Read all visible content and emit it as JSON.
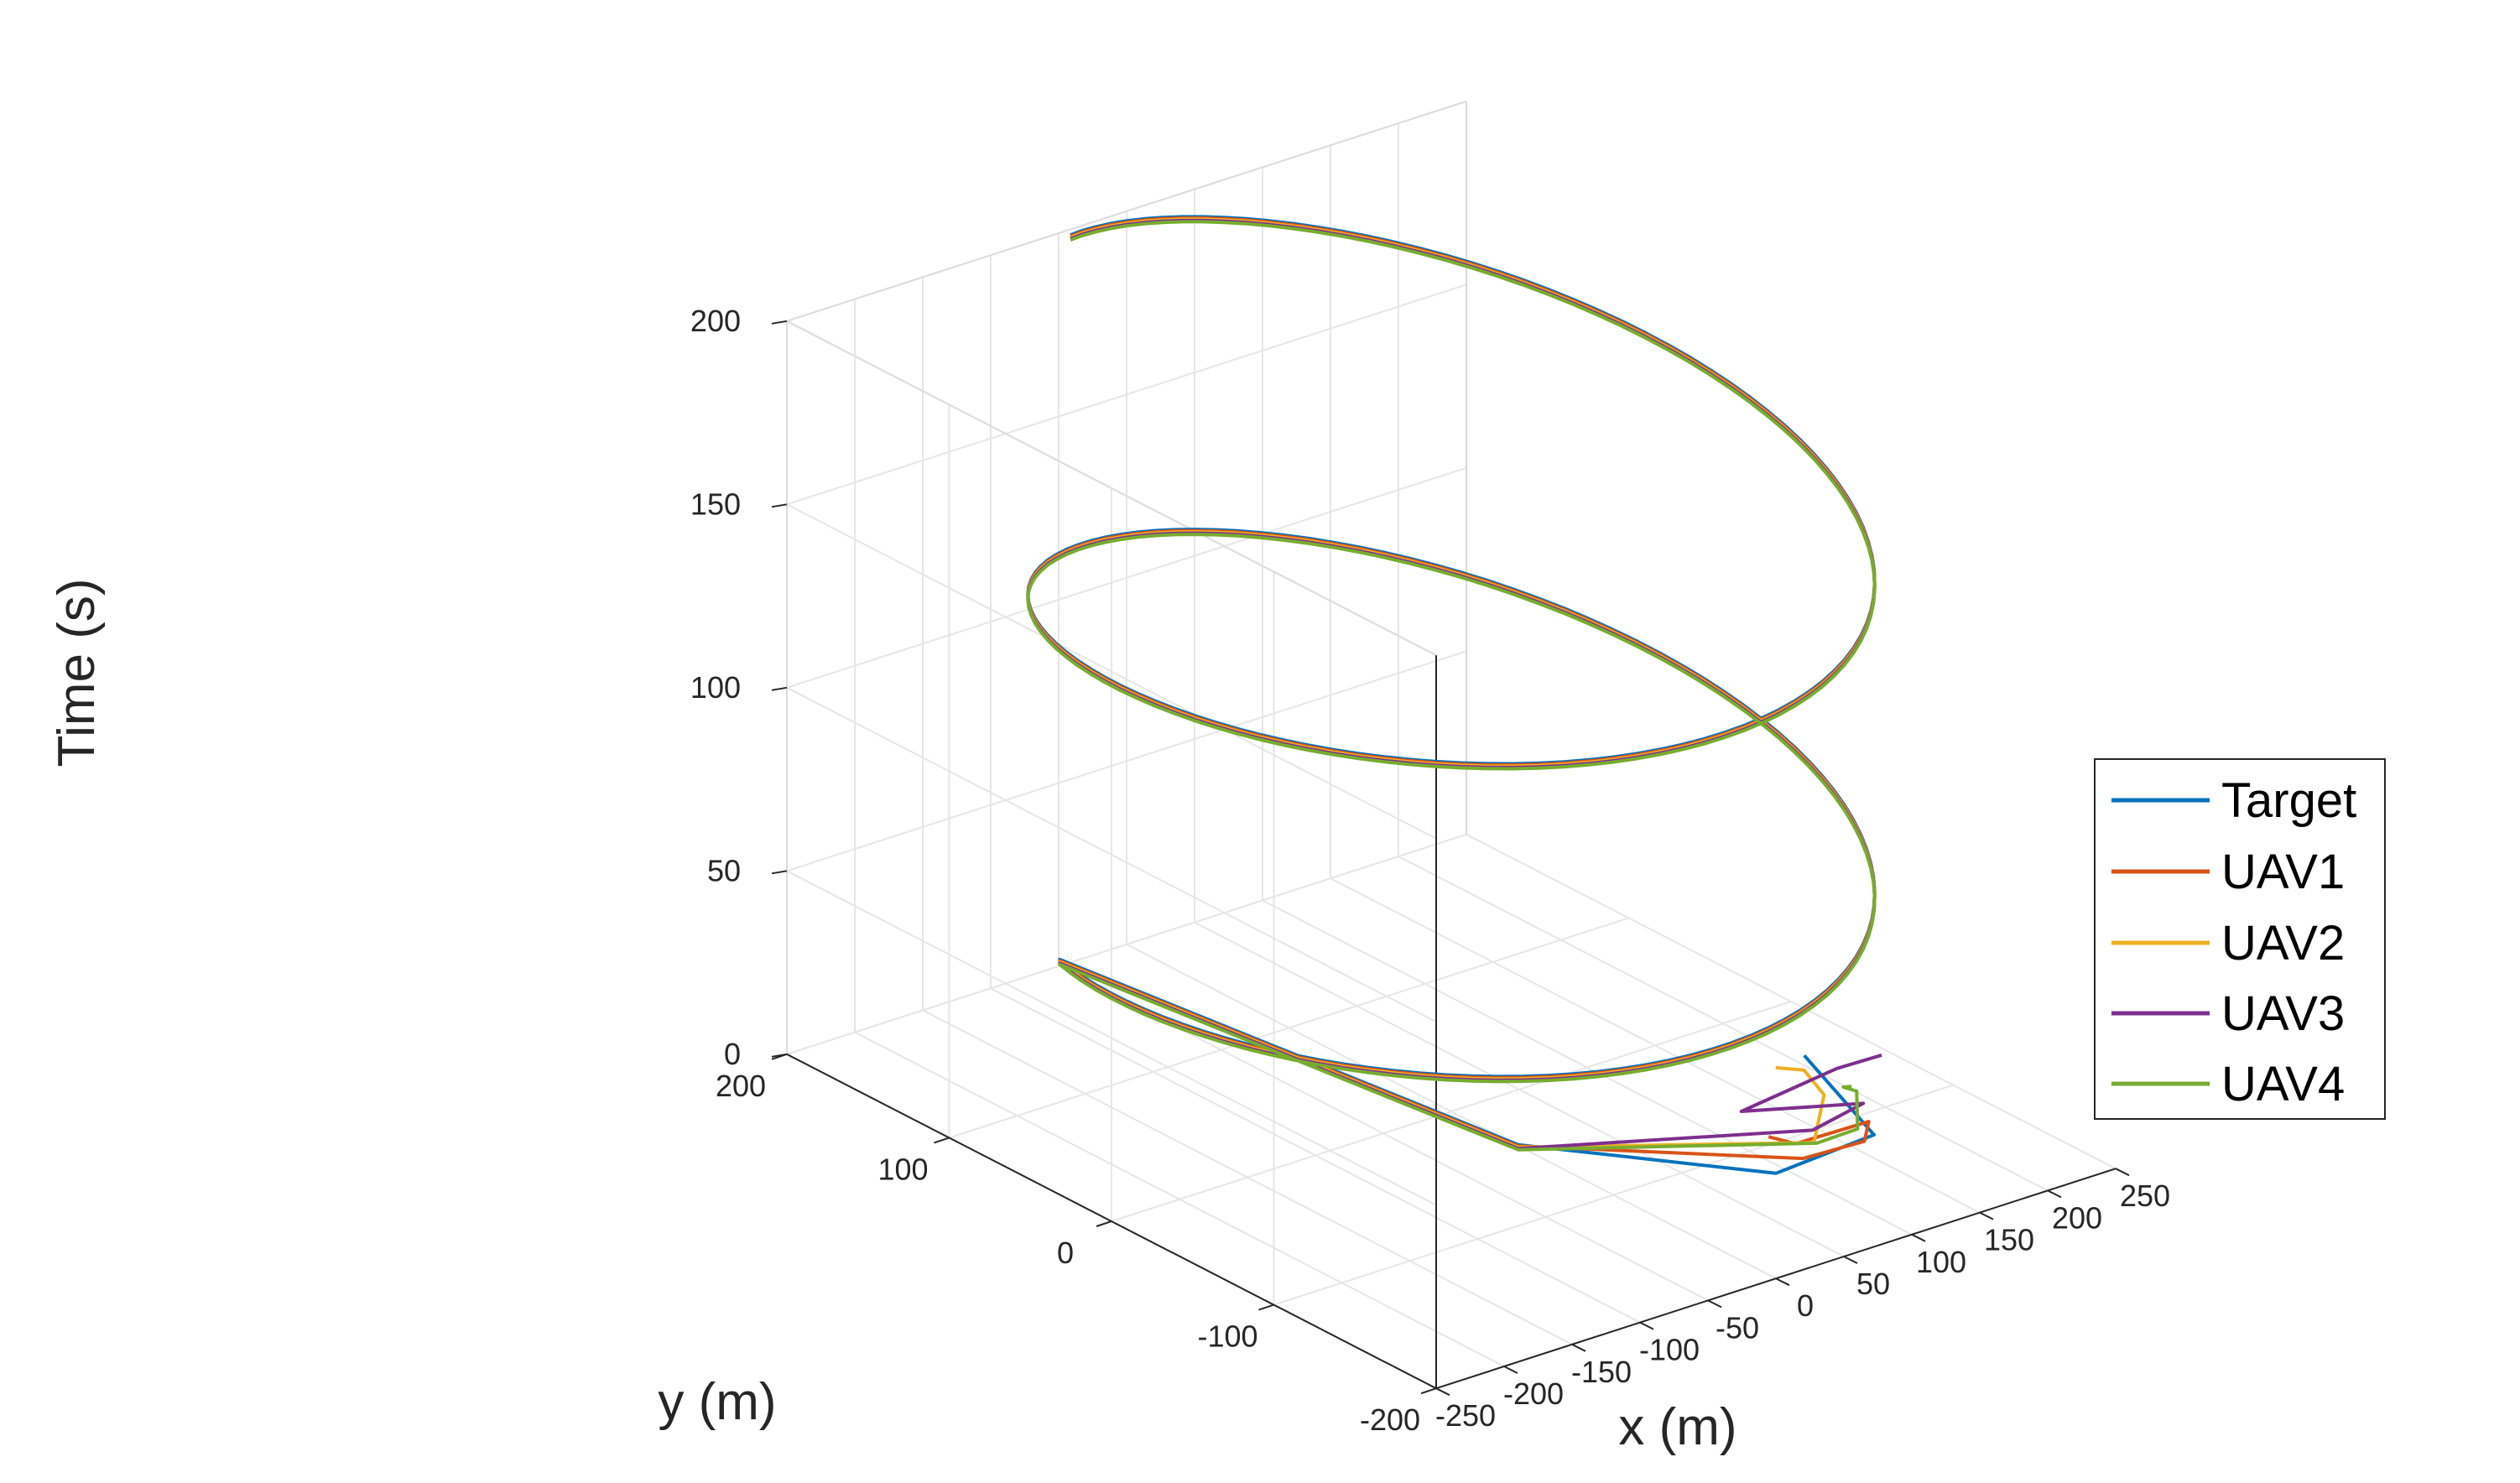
{
  "chart_data": {
    "type": "line",
    "projection": "3d",
    "title": "",
    "xlabel": "x (m)",
    "ylabel": "y (m)",
    "zlabel": "Time (s)",
    "xlim": [
      -250,
      250
    ],
    "ylim": [
      -200,
      200
    ],
    "zlim": [
      0,
      200
    ],
    "x_ticks": [
      -250,
      -200,
      -150,
      -100,
      -50,
      0,
      50,
      100,
      150,
      200,
      250
    ],
    "x_tick_labels": [
      "-250",
      "-200",
      "-150",
      "-100",
      "-50",
      "0",
      "50",
      "100",
      "150",
      "200",
      "250"
    ],
    "y_ticks": [
      -200,
      -100,
      0,
      100,
      200
    ],
    "y_tick_labels": [
      "-200",
      "-100",
      "0",
      "100",
      "200"
    ],
    "z_ticks": [
      0,
      50,
      100,
      150,
      200
    ],
    "z_tick_labels": [
      "0",
      "50",
      "100",
      "150",
      "200"
    ],
    "grid": true,
    "legend_position": "right",
    "legend": [
      "Target",
      "UAV1",
      "UAV2",
      "UAV3",
      "UAV4"
    ],
    "helix": {
      "center": [
        0,
        0
      ],
      "radius": 200,
      "phase_at_t0_deg": -20,
      "angular_rate_deg_per_s": 4.22,
      "t_start": 0,
      "t_end": 200,
      "samples": 241
    },
    "series": [
      {
        "name": "Target",
        "color": "#0072BD",
        "points": [
          [
            200,
            -50,
            2
          ],
          [
            120,
            -160,
            15
          ],
          [
            0,
            -200,
            28
          ],
          [
            -130,
            -150,
            40
          ]
        ],
        "follows_helix": true
      },
      {
        "name": "UAV1",
        "color": "#D95319",
        "points": [
          [
            120,
            -95,
            0
          ],
          [
            110,
            -120,
            5
          ],
          [
            140,
            -140,
            12
          ],
          [
            95,
            -175,
            20
          ],
          [
            20,
            -200,
            30
          ],
          [
            -130,
            -150,
            40
          ]
        ],
        "follows_helix": true
      },
      {
        "name": "UAV2",
        "color": "#EDB120",
        "points": [
          [
            185,
            -45,
            0
          ],
          [
            170,
            -75,
            8
          ],
          [
            125,
            -125,
            18
          ],
          [
            40,
            -190,
            30
          ],
          [
            -130,
            -150,
            40
          ]
        ],
        "follows_helix": true
      },
      {
        "name": "UAV3",
        "color": "#7E2F8E",
        "points": [
          [
            245,
            -60,
            0
          ],
          [
            200,
            -70,
            4
          ],
          [
            100,
            -95,
            10
          ],
          [
            130,
            -145,
            20
          ],
          [
            45,
            -185,
            32
          ],
          [
            -130,
            -150,
            40
          ]
        ],
        "follows_helix": true
      },
      {
        "name": "UAV4",
        "color": "#77AC30",
        "points": [
          [
            205,
            -75,
            0
          ],
          [
            175,
            -95,
            8
          ],
          [
            155,
            -120,
            15
          ],
          [
            90,
            -175,
            25
          ],
          [
            30,
            -200,
            34
          ],
          [
            -130,
            -150,
            40
          ]
        ],
        "follows_helix": true
      }
    ]
  }
}
